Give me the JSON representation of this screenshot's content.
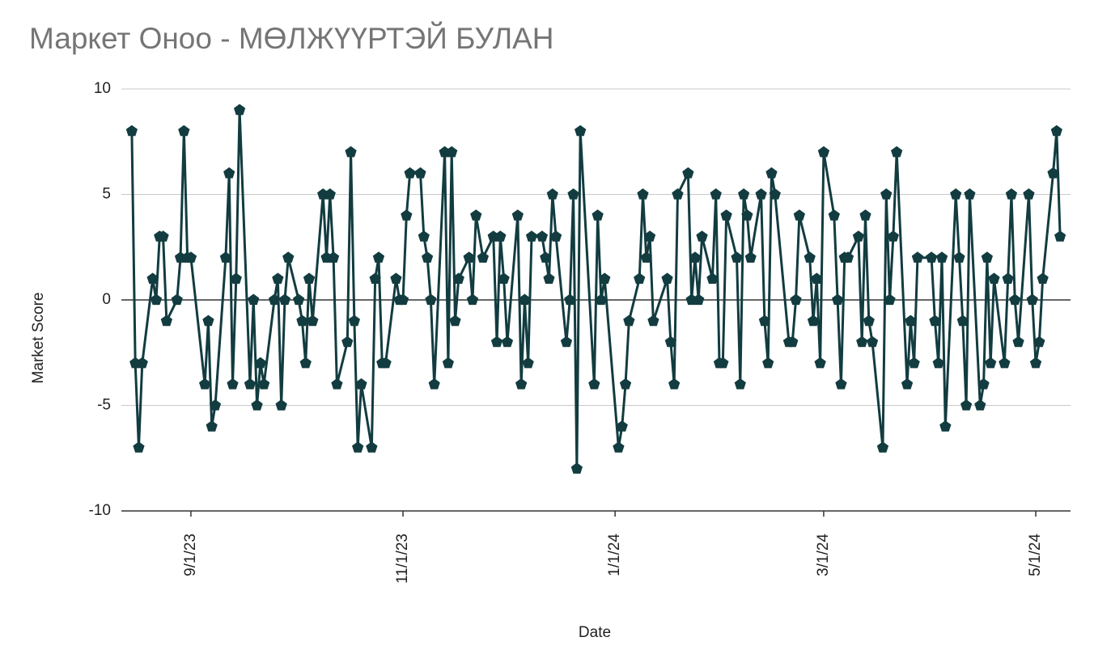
{
  "chart_data": {
    "type": "line",
    "title": "Маркет Оноо - МӨЛЖҮҮРТЭЙ БУЛАН",
    "x_label": "Date",
    "y_label": "Market Score",
    "color": "#123c40",
    "marker": "pentagon",
    "grid": true,
    "xlim": [
      "2023-08-12",
      "2024-05-11"
    ],
    "xticks": [
      {
        "value": "2023-09-01",
        "label": "9/1/23"
      },
      {
        "value": "2023-11-01",
        "label": "11/1/23"
      },
      {
        "value": "2024-01-01",
        "label": "1/1/24"
      },
      {
        "value": "2024-03-01",
        "label": "3/1/24"
      },
      {
        "value": "2024-05-01",
        "label": "5/1/24"
      }
    ],
    "ylim": [
      -10,
      10
    ],
    "yticks": [
      -10,
      -5,
      0,
      5,
      10
    ],
    "x": [
      "2023-08-15",
      "2023-08-16",
      "2023-08-17",
      "2023-08-18",
      "2023-08-21",
      "2023-08-22",
      "2023-08-23",
      "2023-08-24",
      "2023-08-25",
      "2023-08-28",
      "2023-08-29",
      "2023-08-30",
      "2023-08-31",
      "2023-09-01",
      "2023-09-05",
      "2023-09-06",
      "2023-09-07",
      "2023-09-08",
      "2023-09-11",
      "2023-09-12",
      "2023-09-13",
      "2023-09-14",
      "2023-09-15",
      "2023-09-18",
      "2023-09-19",
      "2023-09-20",
      "2023-09-21",
      "2023-09-22",
      "2023-09-25",
      "2023-09-26",
      "2023-09-27",
      "2023-09-28",
      "2023-09-29",
      "2023-10-02",
      "2023-10-03",
      "2023-10-04",
      "2023-10-05",
      "2023-10-06",
      "2023-10-09",
      "2023-10-10",
      "2023-10-11",
      "2023-10-12",
      "2023-10-13",
      "2023-10-16",
      "2023-10-17",
      "2023-10-18",
      "2023-10-19",
      "2023-10-20",
      "2023-10-23",
      "2023-10-24",
      "2023-10-25",
      "2023-10-26",
      "2023-10-27",
      "2023-10-30",
      "2023-10-31",
      "2023-11-01",
      "2023-11-02",
      "2023-11-03",
      "2023-11-06",
      "2023-11-07",
      "2023-11-08",
      "2023-11-09",
      "2023-11-10",
      "2023-11-13",
      "2023-11-14",
      "2023-11-15",
      "2023-11-16",
      "2023-11-17",
      "2023-11-20",
      "2023-11-21",
      "2023-11-22",
      "2023-11-24",
      "2023-11-27",
      "2023-11-28",
      "2023-11-29",
      "2023-11-30",
      "2023-12-01",
      "2023-12-04",
      "2023-12-05",
      "2023-12-06",
      "2023-12-07",
      "2023-12-08",
      "2023-12-11",
      "2023-12-12",
      "2023-12-13",
      "2023-12-14",
      "2023-12-15",
      "2023-12-18",
      "2023-12-19",
      "2023-12-20",
      "2023-12-21",
      "2023-12-22",
      "2023-12-26",
      "2023-12-27",
      "2023-12-28",
      "2023-12-29",
      "2024-01-02",
      "2024-01-03",
      "2024-01-04",
      "2024-01-05",
      "2024-01-08",
      "2024-01-09",
      "2024-01-10",
      "2024-01-11",
      "2024-01-12",
      "2024-01-16",
      "2024-01-17",
      "2024-01-18",
      "2024-01-19",
      "2024-01-22",
      "2024-01-23",
      "2024-01-24",
      "2024-01-25",
      "2024-01-26",
      "2024-01-29",
      "2024-01-30",
      "2024-01-31",
      "2024-02-01",
      "2024-02-02",
      "2024-02-05",
      "2024-02-06",
      "2024-02-07",
      "2024-02-08",
      "2024-02-09",
      "2024-02-12",
      "2024-02-13",
      "2024-02-14",
      "2024-02-15",
      "2024-02-16",
      "2024-02-20",
      "2024-02-21",
      "2024-02-22",
      "2024-02-23",
      "2024-02-26",
      "2024-02-27",
      "2024-02-28",
      "2024-02-29",
      "2024-03-01",
      "2024-03-04",
      "2024-03-05",
      "2024-03-06",
      "2024-03-07",
      "2024-03-08",
      "2024-03-11",
      "2024-03-12",
      "2024-03-13",
      "2024-03-14",
      "2024-03-15",
      "2024-03-18",
      "2024-03-19",
      "2024-03-20",
      "2024-03-21",
      "2024-03-22",
      "2024-03-25",
      "2024-03-26",
      "2024-03-27",
      "2024-03-28",
      "2024-04-01",
      "2024-04-02",
      "2024-04-03",
      "2024-04-04",
      "2024-04-05",
      "2024-04-08",
      "2024-04-09",
      "2024-04-10",
      "2024-04-11",
      "2024-04-12",
      "2024-04-15",
      "2024-04-16",
      "2024-04-17",
      "2024-04-18",
      "2024-04-19",
      "2024-04-22",
      "2024-04-23",
      "2024-04-24",
      "2024-04-25",
      "2024-04-26",
      "2024-04-29",
      "2024-04-30",
      "2024-05-01",
      "2024-05-02",
      "2024-05-03",
      "2024-05-06",
      "2024-05-07",
      "2024-05-08"
    ],
    "values": [
      8,
      -3,
      -7,
      -3,
      1,
      0,
      3,
      3,
      -1,
      0,
      2,
      8,
      2,
      2,
      -4,
      -1,
      -6,
      -5,
      2,
      6,
      -4,
      1,
      9,
      -4,
      0,
      -5,
      -3,
      -4,
      0,
      1,
      -5,
      0,
      2,
      0,
      -1,
      -3,
      1,
      -1,
      5,
      2,
      5,
      2,
      -4,
      -2,
      7,
      -1,
      -7,
      -4,
      -7,
      1,
      2,
      -3,
      -3,
      1,
      0,
      0,
      4,
      6,
      6,
      3,
      2,
      0,
      -4,
      7,
      -3,
      7,
      -1,
      1,
      2,
      0,
      4,
      2,
      3,
      -2,
      3,
      1,
      -2,
      4,
      -4,
      0,
      -3,
      3,
      3,
      2,
      1,
      5,
      3,
      -2,
      0,
      5,
      -8,
      8,
      -4,
      4,
      0,
      1,
      -7,
      -6,
      -4,
      -1,
      1,
      5,
      2,
      3,
      -1,
      1,
      -2,
      -4,
      5,
      6,
      0,
      2,
      0,
      3,
      1,
      5,
      -3,
      -3,
      4,
      2,
      -4,
      5,
      4,
      2,
      5,
      -1,
      -3,
      6,
      5,
      -2,
      -2,
      0,
      4,
      2,
      -1,
      1,
      -3,
      7,
      4,
      0,
      -4,
      2,
      2,
      3,
      -2,
      4,
      -1,
      -2,
      -7,
      5,
      0,
      3,
      7,
      -4,
      -1,
      -3,
      2,
      2,
      -1,
      -3,
      2,
      -6,
      5,
      2,
      -1,
      -5,
      5,
      -5,
      -4,
      2,
      -3,
      1,
      -3,
      1,
      5,
      0,
      -2,
      5,
      0,
      -3,
      -2,
      1,
      6,
      8,
      3
    ]
  }
}
